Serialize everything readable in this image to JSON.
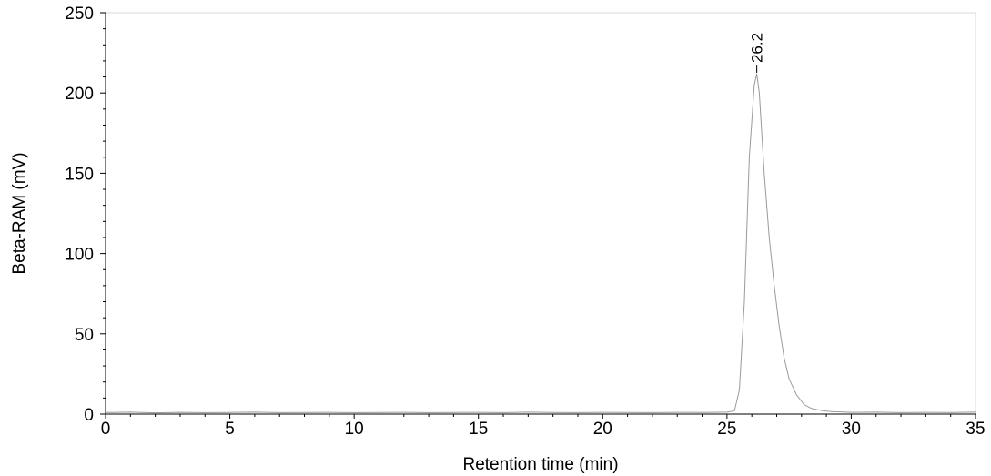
{
  "chart_data": {
    "type": "line",
    "xlabel": "Retention time (min)",
    "ylabel": "Beta-RAM (mV)",
    "xlim": [
      0,
      35
    ],
    "ylim": [
      0,
      250
    ],
    "xticks": [
      0,
      5,
      10,
      15,
      20,
      25,
      30,
      35
    ],
    "yticks": [
      0,
      50,
      100,
      150,
      200,
      250
    ],
    "grid": false,
    "series": [
      {
        "color": "#9a9a9a",
        "x": [
          0,
          1,
          2,
          3,
          4,
          5,
          6,
          7,
          8,
          9,
          10,
          11,
          12,
          13,
          14,
          15,
          16,
          17,
          18,
          19,
          20,
          21,
          22,
          23,
          24,
          25,
          25.3,
          25.5,
          25.7,
          25.9,
          26.1,
          26.2,
          26.3,
          26.5,
          26.7,
          26.9,
          27.1,
          27.3,
          27.5,
          27.8,
          28.1,
          28.4,
          28.8,
          29.2,
          29.7,
          30,
          31,
          32,
          33,
          34,
          35
        ],
        "y": [
          1,
          1.2,
          0.8,
          1.1,
          0.9,
          1,
          1.2,
          0.9,
          1,
          1.1,
          0.9,
          1,
          1.1,
          0.9,
          1,
          1.1,
          0.9,
          1.2,
          1,
          0.9,
          1.1,
          1,
          0.9,
          1.1,
          1,
          1.2,
          2,
          15,
          70,
          160,
          205,
          212,
          200,
          150,
          110,
          80,
          55,
          35,
          22,
          12,
          6,
          3.5,
          2.2,
          1.6,
          1.3,
          1.1,
          1.2,
          0.9,
          1.1,
          1,
          1.2
        ]
      }
    ],
    "annotations": [
      {
        "text": "26.2",
        "x": 26.2,
        "y": 212
      }
    ]
  }
}
